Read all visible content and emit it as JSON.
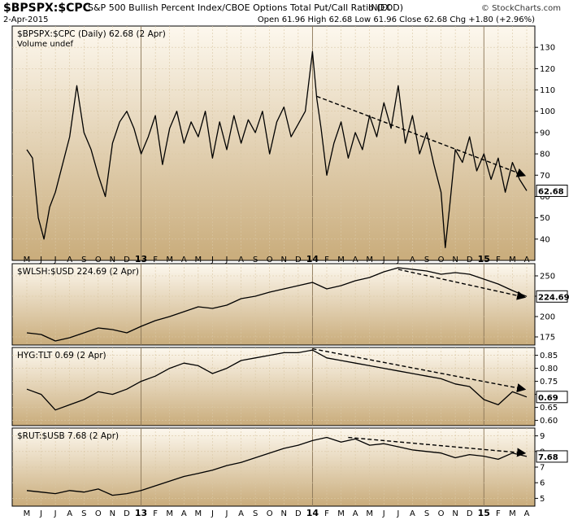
{
  "header": {
    "symbol": "$BPSPX:$CPC",
    "description": "S&P 500 Bullish Percent Index/CBOE Options Total Put/Call Ratio (EOD)",
    "exchange": "INDX",
    "credit": "© StockCharts.com",
    "date": "2-Apr-2015",
    "quote": "Open 61.96  High 62.68  Low 61.96  Close 62.68  Chg +1.80 (+2.96%)"
  },
  "colors": {
    "panel_bg_top": "#fdf8ee",
    "panel_bg_bottom": "#c9ac7b",
    "line": "#000000",
    "trend": "#000000"
  },
  "x_axis": {
    "ticks": [
      {
        "label": "M",
        "t": 0
      },
      {
        "label": "J",
        "t": 1
      },
      {
        "label": "J",
        "t": 2
      },
      {
        "label": "A",
        "t": 3
      },
      {
        "label": "S",
        "t": 4
      },
      {
        "label": "O",
        "t": 5
      },
      {
        "label": "N",
        "t": 6
      },
      {
        "label": "D",
        "t": 7
      },
      {
        "label": "13",
        "t": 8,
        "year": true
      },
      {
        "label": "F",
        "t": 9
      },
      {
        "label": "M",
        "t": 10
      },
      {
        "label": "A",
        "t": 11
      },
      {
        "label": "M",
        "t": 12
      },
      {
        "label": "J",
        "t": 13
      },
      {
        "label": "J",
        "t": 14
      },
      {
        "label": "A",
        "t": 15
      },
      {
        "label": "S",
        "t": 16
      },
      {
        "label": "O",
        "t": 17
      },
      {
        "label": "N",
        "t": 18
      },
      {
        "label": "D",
        "t": 19
      },
      {
        "label": "14",
        "t": 20,
        "year": true
      },
      {
        "label": "F",
        "t": 21
      },
      {
        "label": "M",
        "t": 22
      },
      {
        "label": "A",
        "t": 23
      },
      {
        "label": "M",
        "t": 24
      },
      {
        "label": "J",
        "t": 25
      },
      {
        "label": "J",
        "t": 26
      },
      {
        "label": "A",
        "t": 27
      },
      {
        "label": "S",
        "t": 28
      },
      {
        "label": "O",
        "t": 29
      },
      {
        "label": "N",
        "t": 30
      },
      {
        "label": "D",
        "t": 31
      },
      {
        "label": "15",
        "t": 32,
        "year": true
      },
      {
        "label": "F",
        "t": 33
      },
      {
        "label": "M",
        "t": 34
      },
      {
        "label": "A",
        "t": 35
      }
    ],
    "t_range": [
      0,
      35
    ]
  },
  "chart_data": [
    {
      "type": "line",
      "label": "$BPSPX:$CPC (Daily) 62.68 (2 Apr)",
      "sublabel": "Volume undef",
      "last_value": "62.68",
      "ylim": [
        30,
        140
      ],
      "yticks": [
        40,
        50,
        60,
        70,
        80,
        90,
        100,
        110,
        120,
        130
      ],
      "series": [
        {
          "x": [
            0,
            0.4,
            0.8,
            1.2,
            1.6,
            2,
            2.5,
            3,
            3.5,
            4,
            4.5,
            5,
            5.5,
            6,
            6.5,
            7,
            7.5,
            8,
            8.5,
            9,
            9.5,
            10,
            10.5,
            11,
            11.5,
            12,
            12.5,
            13,
            13.5,
            14,
            14.5,
            15,
            15.5,
            16,
            16.5,
            17,
            17.5,
            18,
            18.5,
            19,
            19.5,
            20,
            20.3,
            20.6,
            21,
            21.5,
            22,
            22.5,
            23,
            23.5,
            24,
            24.5,
            25,
            25.5,
            26,
            26.5,
            27,
            27.5,
            28,
            28.5,
            29,
            29.3,
            29.6,
            30,
            30.5,
            31,
            31.5,
            32,
            32.5,
            33,
            33.5,
            34,
            34.5,
            35
          ],
          "y": [
            82,
            78,
            50,
            40,
            55,
            62,
            75,
            88,
            112,
            90,
            82,
            70,
            60,
            85,
            95,
            100,
            92,
            80,
            88,
            98,
            75,
            92,
            100,
            85,
            95,
            88,
            100,
            78,
            95,
            82,
            98,
            85,
            96,
            90,
            100,
            80,
            95,
            102,
            88,
            94,
            100,
            128,
            106,
            92,
            70,
            85,
            95,
            78,
            90,
            82,
            98,
            88,
            104,
            92,
            112,
            85,
            98,
            80,
            90,
            75,
            62,
            36,
            55,
            82,
            76,
            88,
            72,
            80,
            68,
            78,
            62,
            76,
            68,
            62.68
          ]
        }
      ],
      "trendlines": [
        {
          "t": [
            20.3,
            34.8
          ],
          "y": [
            107,
            70
          ]
        }
      ]
    },
    {
      "type": "line",
      "label": "$WLSH:$USD 224.69 (2 Apr)",
      "last_value": "224.69",
      "ylim": [
        165,
        265
      ],
      "yticks": [
        175,
        200,
        225,
        250
      ],
      "series": [
        {
          "x": [
            0,
            1,
            2,
            3,
            4,
            5,
            6,
            7,
            8,
            9,
            10,
            11,
            12,
            13,
            14,
            15,
            16,
            17,
            18,
            19,
            20,
            21,
            22,
            23,
            24,
            25,
            26,
            27,
            28,
            29,
            30,
            31,
            32,
            33,
            34,
            35
          ],
          "y": [
            180,
            178,
            170,
            174,
            180,
            186,
            184,
            180,
            188,
            195,
            200,
            206,
            212,
            210,
            214,
            222,
            225,
            230,
            234,
            238,
            242,
            234,
            238,
            244,
            248,
            255,
            260,
            258,
            256,
            252,
            254,
            252,
            246,
            240,
            232,
            224.69
          ]
        }
      ],
      "trendlines": [
        {
          "t": [
            26,
            34.8
          ],
          "y": [
            258,
            224
          ]
        }
      ]
    },
    {
      "type": "line",
      "label": "HYG:TLT 0.69 (2 Apr)",
      "last_value": "0.69",
      "ylim": [
        0.58,
        0.88
      ],
      "yticks": [
        0.6,
        0.65,
        0.7,
        0.75,
        0.8,
        0.85
      ],
      "series": [
        {
          "x": [
            0,
            1,
            2,
            3,
            4,
            5,
            6,
            7,
            8,
            9,
            10,
            11,
            12,
            13,
            14,
            15,
            16,
            17,
            18,
            19,
            20,
            21,
            22,
            23,
            24,
            25,
            26,
            27,
            28,
            29,
            30,
            31,
            32,
            33,
            34,
            35
          ],
          "y": [
            0.72,
            0.7,
            0.64,
            0.66,
            0.68,
            0.71,
            0.7,
            0.72,
            0.75,
            0.77,
            0.8,
            0.82,
            0.81,
            0.78,
            0.8,
            0.83,
            0.84,
            0.85,
            0.86,
            0.86,
            0.87,
            0.84,
            0.83,
            0.82,
            0.81,
            0.8,
            0.79,
            0.78,
            0.77,
            0.76,
            0.74,
            0.73,
            0.68,
            0.66,
            0.71,
            0.69
          ]
        }
      ],
      "trendlines": [
        {
          "t": [
            20,
            34.8
          ],
          "y": [
            0.875,
            0.72
          ]
        }
      ]
    },
    {
      "type": "line",
      "label": "$RUT:$USB 7.68 (2 Apr)",
      "last_value": "7.68",
      "ylim": [
        4.5,
        9.5
      ],
      "yticks": [
        5,
        6,
        7,
        8,
        9
      ],
      "series": [
        {
          "x": [
            0,
            1,
            2,
            3,
            4,
            5,
            6,
            7,
            8,
            9,
            10,
            11,
            12,
            13,
            14,
            15,
            16,
            17,
            18,
            19,
            20,
            21,
            22,
            23,
            24,
            25,
            26,
            27,
            28,
            29,
            30,
            31,
            32,
            33,
            34,
            35
          ],
          "y": [
            5.5,
            5.4,
            5.3,
            5.5,
            5.4,
            5.6,
            5.2,
            5.3,
            5.5,
            5.8,
            6.1,
            6.4,
            6.6,
            6.8,
            7.1,
            7.3,
            7.6,
            7.9,
            8.2,
            8.4,
            8.7,
            8.9,
            8.6,
            8.8,
            8.4,
            8.5,
            8.3,
            8.1,
            8.0,
            7.9,
            7.6,
            7.8,
            7.7,
            7.5,
            7.9,
            7.68
          ]
        }
      ],
      "trendlines": [
        {
          "t": [
            22.5,
            34.8
          ],
          "y": [
            8.9,
            7.9
          ]
        }
      ]
    }
  ]
}
